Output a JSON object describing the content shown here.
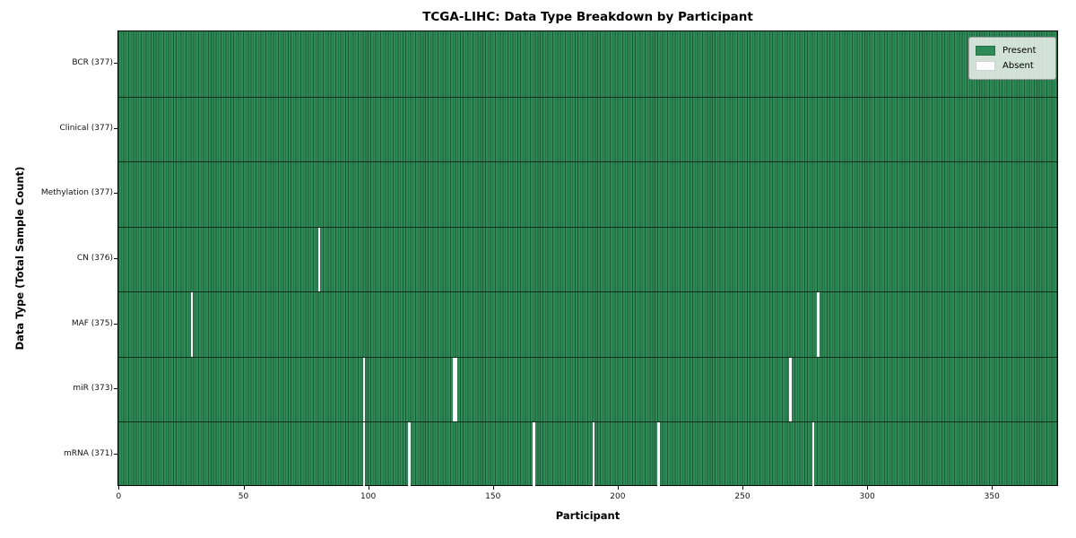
{
  "figure": {
    "title": "TCGA-LIHC: Data Type Breakdown by Participant",
    "xlabel": "Participant",
    "ylabel": "Data Type (Total Sample Count)"
  },
  "legend": {
    "position": "upper right",
    "entries": [
      {
        "label": "Present",
        "color": "#2e8b57"
      },
      {
        "label": "Absent",
        "color": "#ffffff"
      }
    ]
  },
  "chart_data": {
    "type": "heatmap",
    "title": "TCGA-LIHC: Data Type Breakdown by Participant",
    "xlabel": "Participant",
    "ylabel": "Data Type (Total Sample Count)",
    "n_participants": 377,
    "xlim": [
      -0.5,
      376.5
    ],
    "x_ticks": [
      0,
      50,
      100,
      150,
      200,
      250,
      300,
      350
    ],
    "grid": false,
    "legend_entries": [
      "Present",
      "Absent"
    ],
    "value_encoding": {
      "present": 1,
      "absent": 0
    },
    "rows": [
      {
        "label": "BCR (377)",
        "data_type": "BCR",
        "total_samples": 377,
        "absent_participants": []
      },
      {
        "label": "Clinical (377)",
        "data_type": "Clinical",
        "total_samples": 377,
        "absent_participants": []
      },
      {
        "label": "Methylation (377)",
        "data_type": "Methylation",
        "total_samples": 377,
        "absent_participants": []
      },
      {
        "label": "CN (376)",
        "data_type": "CN",
        "total_samples": 376,
        "absent_participants": [
          80
        ]
      },
      {
        "label": "MAF (375)",
        "data_type": "MAF",
        "total_samples": 375,
        "absent_participants": [
          29,
          280
        ]
      },
      {
        "label": "miR (373)",
        "data_type": "miR",
        "total_samples": 373,
        "absent_participants": [
          98,
          134,
          135,
          269
        ]
      },
      {
        "label": "mRNA (371)",
        "data_type": "mRNA",
        "total_samples": 371,
        "absent_participants": [
          98,
          116,
          166,
          190,
          216,
          278
        ]
      }
    ],
    "colors": {
      "present": "#2e8b57",
      "absent": "#ffffff",
      "cell_edge": "rgba(10,35,20,0.45)",
      "row_separator": "rgba(0,0,0,0.65)",
      "plot_border": "#000000"
    }
  }
}
